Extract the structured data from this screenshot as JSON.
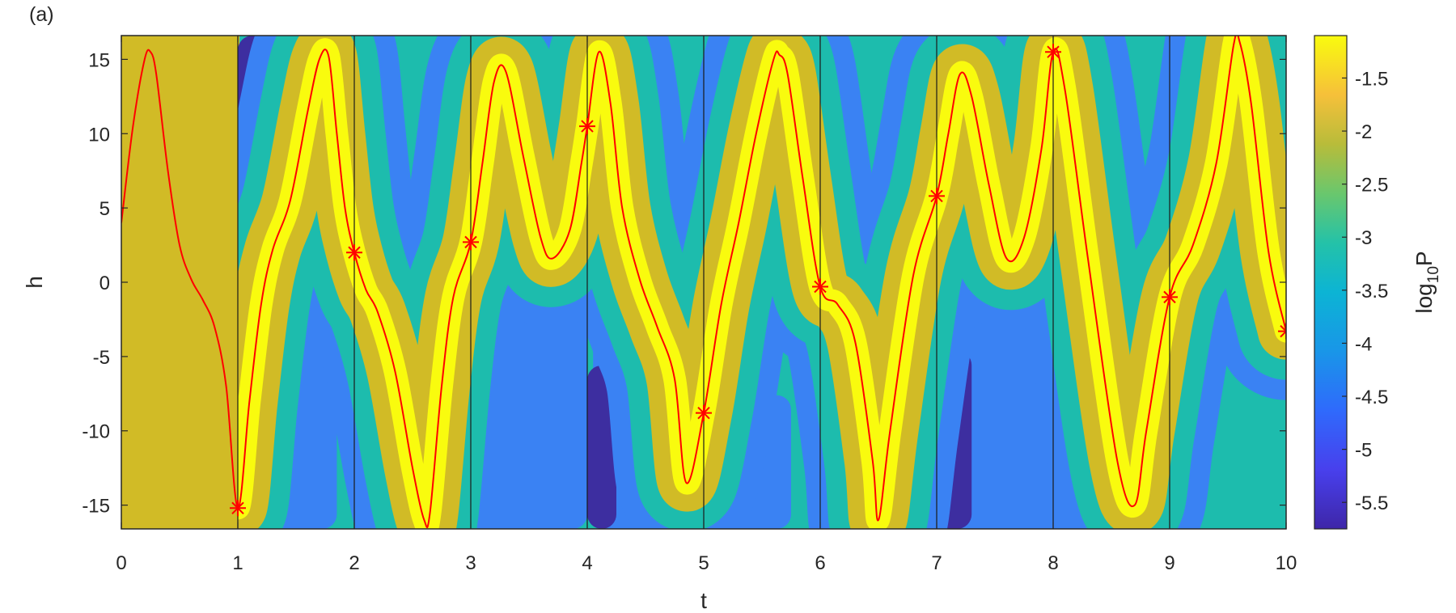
{
  "panel_label": "(a)",
  "chart_data": {
    "type": "heatmap",
    "subtype": "filled-contour",
    "xlabel": "t",
    "ylabel": "h",
    "colorbar_label": "log",
    "colorbar_label_sub": "10",
    "colorbar_label_tail": "P",
    "xlim": [
      0,
      10
    ],
    "ylim": [
      -16.6,
      16.6
    ],
    "xticks": [
      0,
      1,
      2,
      3,
      4,
      5,
      6,
      7,
      8,
      9,
      10
    ],
    "yticks": [
      15,
      10,
      5,
      0,
      -5,
      -10,
      -15
    ],
    "xtick_labels": [
      "0",
      "1",
      "2",
      "3",
      "4",
      "5",
      "6",
      "7",
      "8",
      "9",
      "10"
    ],
    "ytick_labels": [
      "15",
      "10",
      "5",
      "0",
      "-5",
      "-10",
      "-15"
    ],
    "colorbar_range": [
      -5.75,
      -1.1
    ],
    "colorbar_ticks": [
      -1.5,
      -2,
      -2.5,
      -3,
      -3.5,
      -4,
      -4.5,
      -5,
      -5.5
    ],
    "colorbar_tick_labels": [
      "-1.5",
      "-2",
      "-2.5",
      "-3",
      "-3.5",
      "-4",
      "-4.5",
      "-5",
      "-5.5"
    ],
    "colormap": "parula",
    "contour_levels": [
      -2,
      -3,
      -4,
      -5
    ],
    "band_colors": {
      "yellow": "#f9fb0e",
      "olive": "#d1bb26",
      "teal": "#1dbcad",
      "blue": "#3a82f3",
      "dark_blue": "#3d2ea0"
    },
    "background_before_t1": "#d1bb26",
    "series": [
      {
        "type": "line",
        "color": "#ff0000",
        "t": [
          0,
          0.1,
          0.2,
          0.25,
          0.3,
          0.4,
          0.5,
          0.6,
          0.7,
          0.8,
          0.9,
          1.0,
          1.1,
          1.2,
          1.3,
          1.45,
          1.6,
          1.7,
          1.78,
          1.85,
          1.92,
          2.0,
          2.1,
          2.2,
          2.35,
          2.5,
          2.6,
          2.65,
          2.75,
          2.85,
          3.0,
          3.1,
          3.2,
          3.3,
          3.45,
          3.6,
          3.7,
          3.85,
          3.95,
          4.0,
          4.1,
          4.2,
          4.3,
          4.45,
          4.6,
          4.75,
          4.85,
          5.0,
          5.15,
          5.3,
          5.45,
          5.6,
          5.65,
          5.72,
          5.85,
          6.0,
          6.15,
          6.3,
          6.45,
          6.5,
          6.6,
          6.8,
          7.0,
          7.1,
          7.2,
          7.3,
          7.45,
          7.6,
          7.75,
          7.9,
          8.0,
          8.1,
          8.3,
          8.55,
          8.7,
          8.8,
          9.0,
          9.2,
          9.4,
          9.55,
          9.6,
          9.7,
          9.85,
          10.0
        ],
        "h": [
          4.0,
          10.5,
          15.0,
          15.5,
          14.0,
          7.5,
          2.5,
          0.2,
          -1.2,
          -3.0,
          -7.0,
          -15.2,
          -8.0,
          -1.5,
          2.2,
          5.5,
          11.5,
          15.0,
          15.2,
          10.0,
          5.0,
          2.0,
          -0.5,
          -2.0,
          -6.0,
          -12.5,
          -16.0,
          -15.5,
          -7.0,
          -1.0,
          2.7,
          8.0,
          13.5,
          14.2,
          8.5,
          3.0,
          1.6,
          3.5,
          8.0,
          10.5,
          15.5,
          12.0,
          5.0,
          0.2,
          -3.0,
          -6.5,
          -13.5,
          -8.8,
          -1.5,
          4.0,
          10.0,
          15.0,
          15.3,
          14.0,
          7.0,
          -0.3,
          -1.5,
          -4.0,
          -12.0,
          -16.0,
          -10.0,
          0.5,
          5.8,
          10.0,
          14.0,
          12.5,
          6.5,
          1.6,
          3.0,
          9.0,
          15.5,
          13.0,
          1.5,
          -12.0,
          -15.0,
          -10.0,
          -1.0,
          2.5,
          8.0,
          16.0,
          16.2,
          12.0,
          2.0,
          -3.3
        ]
      },
      {
        "type": "markers",
        "marker": "asterisk",
        "color": "#ff0000",
        "t": [
          1,
          2,
          3,
          4,
          5,
          6,
          7,
          8,
          9,
          10
        ],
        "h": [
          -15.2,
          2.0,
          2.7,
          10.5,
          -8.8,
          -0.3,
          5.8,
          15.5,
          -1.0,
          -3.3
        ]
      }
    ]
  }
}
